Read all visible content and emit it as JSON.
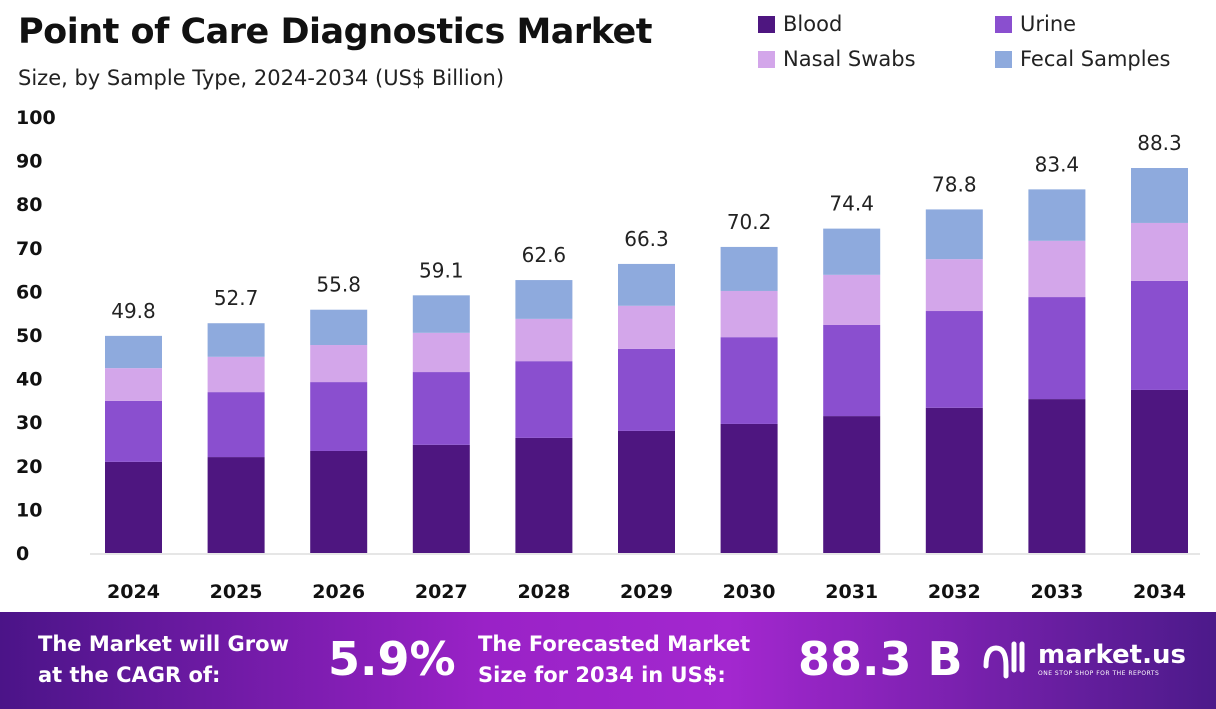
{
  "chart_data": {
    "type": "bar",
    "stacked": true,
    "title": "Point of Care Diagnostics Market",
    "subtitle": "Size, by Sample Type, 2024-2034 (US$ Billion)",
    "categories": [
      "2024",
      "2025",
      "2026",
      "2027",
      "2028",
      "2029",
      "2030",
      "2031",
      "2032",
      "2033",
      "2034"
    ],
    "series": [
      {
        "name": "Blood",
        "color": "#4e1680",
        "values": [
          20.9,
          22.0,
          23.4,
          24.8,
          26.4,
          28.0,
          29.6,
          31.4,
          33.3,
          35.3,
          37.4
        ]
      },
      {
        "name": "Urine",
        "color": "#8a4fcf",
        "values": [
          14.0,
          14.9,
          15.8,
          16.7,
          17.6,
          18.8,
          19.9,
          20.9,
          22.2,
          23.4,
          25.0
        ]
      },
      {
        "name": "Nasal Swabs",
        "color": "#d3a6ea",
        "values": [
          7.5,
          8.1,
          8.5,
          9.0,
          9.7,
          9.9,
          10.6,
          11.5,
          11.9,
          12.9,
          13.3
        ]
      },
      {
        "name": "Fecal Samples",
        "color": "#8eaadd",
        "values": [
          7.4,
          7.7,
          8.1,
          8.6,
          8.9,
          9.6,
          10.1,
          10.6,
          11.4,
          11.8,
          12.6
        ]
      }
    ],
    "totals": [
      "49.8",
      "52.7",
      "55.8",
      "59.1",
      "62.6",
      "66.3",
      "70.2",
      "74.4",
      "78.8",
      "83.4",
      "88.3"
    ],
    "yticks": [
      "0",
      "10",
      "20",
      "30",
      "40",
      "50",
      "60",
      "70",
      "80",
      "90",
      "100"
    ],
    "ylim": [
      0,
      100
    ],
    "grid": false,
    "legend_position": "top-right"
  },
  "footer": {
    "cagr_text_1": "The Market will Grow",
    "cagr_text_2": "at the CAGR of:",
    "cagr_value": "5.9%",
    "forecast_text_1": "The Forecasted Market",
    "forecast_text_2": "Size for 2034 in US$:",
    "forecast_value": "88.3 B",
    "logo_text": "market.us",
    "logo_tagline": "ONE STOP SHOP FOR THE REPORTS"
  }
}
